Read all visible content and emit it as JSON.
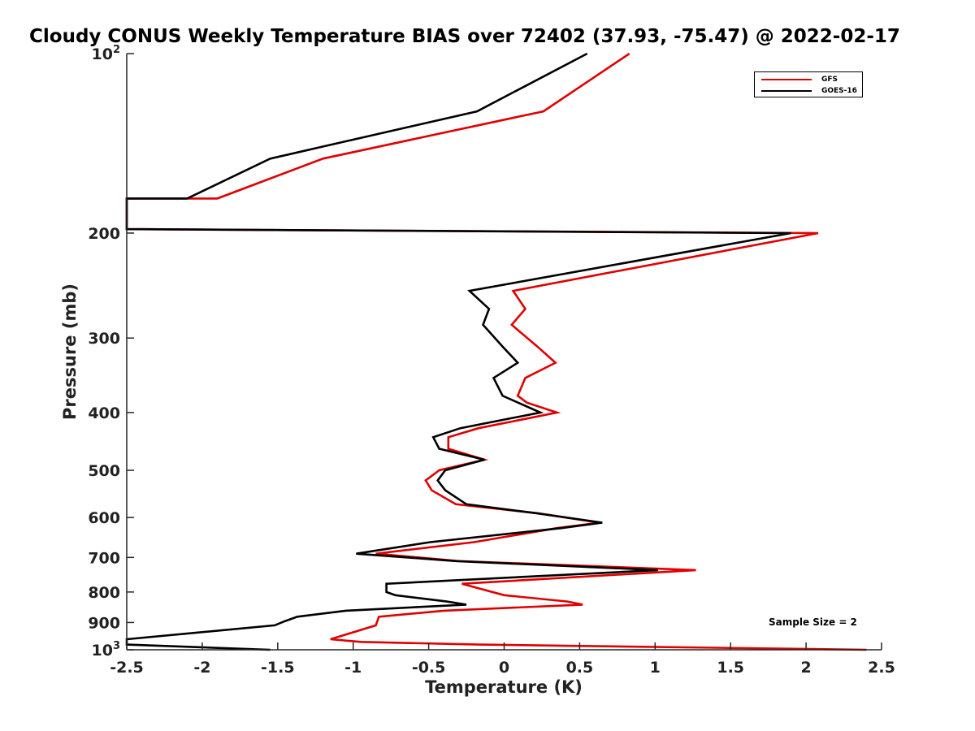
{
  "chart_data": {
    "type": "line",
    "title": "Cloudy CONUS Weekly Temperature BIAS over 72402 (37.93, -75.47) @ 2022-02-17",
    "xlabel": "Temperature (K)",
    "ylabel": "Pressure (mb)",
    "xlim": [
      -2.5,
      2.5
    ],
    "ylim": [
      100,
      1000
    ],
    "y_scale": "log",
    "y_reversed": true,
    "x_ticks": [
      "-2.5",
      "-2",
      "-1.5",
      "-1",
      "-0.5",
      "0",
      "0.5",
      "1",
      "1.5",
      "2",
      "2.5"
    ],
    "y_ticks": [
      {
        "value": 100,
        "base": "10",
        "exp": "2"
      },
      {
        "value": 200,
        "label": "200"
      },
      {
        "value": 300,
        "label": "300"
      },
      {
        "value": 400,
        "label": "400"
      },
      {
        "value": 500,
        "label": "500"
      },
      {
        "value": 600,
        "label": "600"
      },
      {
        "value": 700,
        "label": "700"
      },
      {
        "value": 800,
        "label": "800"
      },
      {
        "value": 900,
        "label": "900"
      },
      {
        "value": 1000,
        "base": "10",
        "exp": "3"
      }
    ],
    "legend_position": "top-right",
    "annotation": "Sample Size = 2",
    "series": [
      {
        "name": "GFS",
        "color": "#e00000",
        "points": [
          [
            0.83,
            100
          ],
          [
            0.26,
            125
          ],
          [
            -1.2,
            150
          ],
          [
            -1.9,
            175
          ],
          [
            -2.5,
            175
          ],
          [
            -2.5,
            197
          ],
          [
            2.08,
            200
          ],
          [
            0.06,
            250
          ],
          [
            0.14,
            268
          ],
          [
            0.05,
            285
          ],
          [
            0.22,
            310
          ],
          [
            0.34,
            330
          ],
          [
            0.14,
            350
          ],
          [
            0.09,
            375
          ],
          [
            0.15,
            385
          ],
          [
            0.35,
            400
          ],
          [
            -0.17,
            425
          ],
          [
            -0.37,
            440
          ],
          [
            -0.37,
            460
          ],
          [
            -0.13,
            480
          ],
          [
            -0.43,
            500
          ],
          [
            -0.52,
            520
          ],
          [
            -0.48,
            540
          ],
          [
            -0.32,
            570
          ],
          [
            0.22,
            590
          ],
          [
            0.63,
            612
          ],
          [
            0.35,
            625
          ],
          [
            -0.2,
            660
          ],
          [
            -0.85,
            690
          ],
          [
            -0.3,
            710
          ],
          [
            1.27,
            735
          ],
          [
            -0.28,
            775
          ],
          [
            0.0,
            810
          ],
          [
            0.42,
            830
          ],
          [
            0.52,
            840
          ],
          [
            -0.4,
            860
          ],
          [
            -0.83,
            880
          ],
          [
            -0.85,
            910
          ],
          [
            -1.15,
            960
          ],
          [
            -0.95,
            970
          ],
          [
            -0.17,
            980
          ],
          [
            2.4,
            1000
          ]
        ]
      },
      {
        "name": "GOES-16",
        "color": "#000000",
        "points": [
          [
            0.55,
            100
          ],
          [
            -0.18,
            125
          ],
          [
            -1.55,
            150
          ],
          [
            -2.1,
            175
          ],
          [
            -2.5,
            175
          ],
          [
            -2.5,
            197
          ],
          [
            1.9,
            200
          ],
          [
            -0.23,
            250
          ],
          [
            -0.1,
            268
          ],
          [
            -0.14,
            285
          ],
          [
            -0.01,
            310
          ],
          [
            0.09,
            330
          ],
          [
            -0.07,
            350
          ],
          [
            -0.01,
            375
          ],
          [
            0.24,
            400
          ],
          [
            -0.29,
            425
          ],
          [
            -0.47,
            440
          ],
          [
            -0.43,
            460
          ],
          [
            -0.13,
            480
          ],
          [
            -0.39,
            500
          ],
          [
            -0.44,
            520
          ],
          [
            -0.39,
            540
          ],
          [
            -0.25,
            570
          ],
          [
            0.21,
            590
          ],
          [
            0.65,
            612
          ],
          [
            0.38,
            625
          ],
          [
            -0.49,
            660
          ],
          [
            -0.98,
            690
          ],
          [
            -0.32,
            710
          ],
          [
            1.02,
            735
          ],
          [
            -0.78,
            775
          ],
          [
            -0.78,
            800
          ],
          [
            -0.72,
            810
          ],
          [
            -0.38,
            830
          ],
          [
            -0.25,
            840
          ],
          [
            -1.05,
            860
          ],
          [
            -1.37,
            880
          ],
          [
            -1.45,
            895
          ],
          [
            -1.52,
            910
          ],
          [
            -2.5,
            960
          ],
          [
            -2.5,
            980
          ],
          [
            -1.55,
            1000
          ]
        ]
      }
    ]
  }
}
